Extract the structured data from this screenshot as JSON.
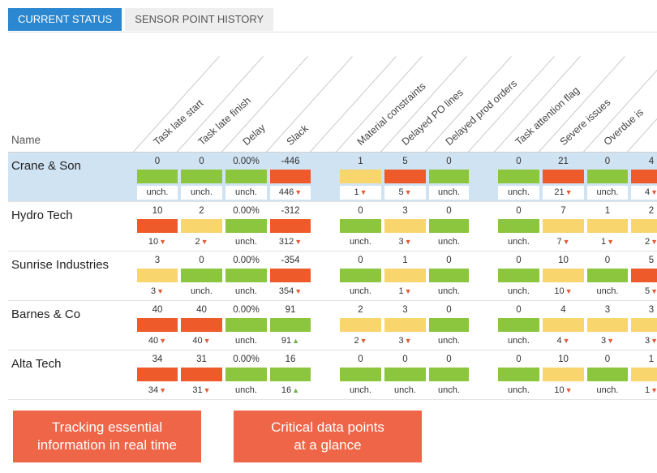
{
  "tabs": [
    {
      "label": "CURRENT STATUS",
      "active": true
    },
    {
      "label": "SENSOR POINT HISTORY",
      "active": false
    }
  ],
  "columns": [
    {
      "label": "Task late start"
    },
    {
      "label": "Task late finish"
    },
    {
      "label": "Delay"
    },
    {
      "label": "Slack"
    },
    {
      "label": ""
    },
    {
      "label": "Material constraints"
    },
    {
      "label": "Delayed PO lines"
    },
    {
      "label": "Delayed prod orders"
    },
    {
      "label": ""
    },
    {
      "label": "Task attention flag"
    },
    {
      "label": "Severe issues"
    },
    {
      "label": "Overdue is"
    },
    {
      "label": ""
    }
  ],
  "name_header": "Name",
  "colors": {
    "green": "#8cc63f",
    "yellow": "#f9d56e",
    "red": "#ef5a2a",
    "up": "#6cb444",
    "down": "#e55a35"
  },
  "rows": [
    {
      "name": "Crane & Son",
      "selected": true,
      "cells": [
        {
          "value": "0",
          "color": "green",
          "change": "unch.",
          "dir": ""
        },
        {
          "value": "0",
          "color": "green",
          "change": "unch.",
          "dir": ""
        },
        {
          "value": "0.00%",
          "color": "green",
          "change": "unch.",
          "dir": ""
        },
        {
          "value": "-446",
          "color": "red",
          "change": "446",
          "dir": "down"
        },
        null,
        {
          "value": "1",
          "color": "yellow",
          "change": "1",
          "dir": "down"
        },
        {
          "value": "5",
          "color": "red",
          "change": "5",
          "dir": "down"
        },
        {
          "value": "0",
          "color": "green",
          "change": "unch.",
          "dir": ""
        },
        null,
        {
          "value": "0",
          "color": "green",
          "change": "unch.",
          "dir": ""
        },
        {
          "value": "21",
          "color": "red",
          "change": "21",
          "dir": "down"
        },
        {
          "value": "0",
          "color": "green",
          "change": "unch.",
          "dir": ""
        },
        {
          "value": "4",
          "color": "red",
          "change": "4",
          "dir": "down"
        }
      ]
    },
    {
      "name": "Hydro Tech",
      "selected": false,
      "cells": [
        {
          "value": "10",
          "color": "red",
          "change": "10",
          "dir": "down"
        },
        {
          "value": "2",
          "color": "yellow",
          "change": "2",
          "dir": "down"
        },
        {
          "value": "0.00%",
          "color": "green",
          "change": "unch.",
          "dir": ""
        },
        {
          "value": "-312",
          "color": "red",
          "change": "312",
          "dir": "down"
        },
        null,
        {
          "value": "0",
          "color": "green",
          "change": "unch.",
          "dir": ""
        },
        {
          "value": "3",
          "color": "yellow",
          "change": "3",
          "dir": "down"
        },
        {
          "value": "0",
          "color": "green",
          "change": "unch.",
          "dir": ""
        },
        null,
        {
          "value": "0",
          "color": "green",
          "change": "unch.",
          "dir": ""
        },
        {
          "value": "7",
          "color": "yellow",
          "change": "7",
          "dir": "down"
        },
        {
          "value": "1",
          "color": "yellow",
          "change": "1",
          "dir": "down"
        },
        {
          "value": "2",
          "color": "yellow",
          "change": "2",
          "dir": "down"
        }
      ]
    },
    {
      "name": "Sunrise Industries",
      "selected": false,
      "cells": [
        {
          "value": "3",
          "color": "yellow",
          "change": "3",
          "dir": "down"
        },
        {
          "value": "0",
          "color": "green",
          "change": "unch.",
          "dir": ""
        },
        {
          "value": "0.00%",
          "color": "green",
          "change": "unch.",
          "dir": ""
        },
        {
          "value": "-354",
          "color": "red",
          "change": "354",
          "dir": "down"
        },
        null,
        {
          "value": "0",
          "color": "green",
          "change": "unch.",
          "dir": ""
        },
        {
          "value": "1",
          "color": "yellow",
          "change": "1",
          "dir": "down"
        },
        {
          "value": "0",
          "color": "green",
          "change": "unch.",
          "dir": ""
        },
        null,
        {
          "value": "0",
          "color": "green",
          "change": "unch.",
          "dir": ""
        },
        {
          "value": "10",
          "color": "yellow",
          "change": "10",
          "dir": "down"
        },
        {
          "value": "0",
          "color": "green",
          "change": "unch.",
          "dir": ""
        },
        {
          "value": "5",
          "color": "red",
          "change": "5",
          "dir": "down"
        }
      ]
    },
    {
      "name": "Barnes & Co",
      "selected": false,
      "cells": [
        {
          "value": "40",
          "color": "red",
          "change": "40",
          "dir": "down"
        },
        {
          "value": "40",
          "color": "red",
          "change": "40",
          "dir": "down"
        },
        {
          "value": "0.00%",
          "color": "green",
          "change": "unch.",
          "dir": ""
        },
        {
          "value": "91",
          "color": "green",
          "change": "91",
          "dir": "up"
        },
        null,
        {
          "value": "2",
          "color": "yellow",
          "change": "2",
          "dir": "down"
        },
        {
          "value": "3",
          "color": "yellow",
          "change": "3",
          "dir": "down"
        },
        {
          "value": "0",
          "color": "green",
          "change": "unch.",
          "dir": ""
        },
        null,
        {
          "value": "0",
          "color": "green",
          "change": "unch.",
          "dir": ""
        },
        {
          "value": "4",
          "color": "yellow",
          "change": "4",
          "dir": "down"
        },
        {
          "value": "3",
          "color": "yellow",
          "change": "3",
          "dir": "down"
        },
        {
          "value": "3",
          "color": "yellow",
          "change": "3",
          "dir": "down"
        }
      ]
    },
    {
      "name": "Alta Tech",
      "selected": false,
      "cells": [
        {
          "value": "34",
          "color": "red",
          "change": "34",
          "dir": "down"
        },
        {
          "value": "31",
          "color": "red",
          "change": "31",
          "dir": "down"
        },
        {
          "value": "0.00%",
          "color": "green",
          "change": "unch.",
          "dir": ""
        },
        {
          "value": "16",
          "color": "green",
          "change": "16",
          "dir": "up"
        },
        null,
        {
          "value": "0",
          "color": "green",
          "change": "unch.",
          "dir": ""
        },
        {
          "value": "0",
          "color": "green",
          "change": "unch.",
          "dir": ""
        },
        {
          "value": "0",
          "color": "green",
          "change": "unch.",
          "dir": ""
        },
        null,
        {
          "value": "0",
          "color": "green",
          "change": "unch.",
          "dir": ""
        },
        {
          "value": "10",
          "color": "yellow",
          "change": "10",
          "dir": "down"
        },
        {
          "value": "0",
          "color": "green",
          "change": "unch.",
          "dir": ""
        },
        {
          "value": "1",
          "color": "yellow",
          "change": "1",
          "dir": "down"
        }
      ]
    }
  ],
  "callouts": [
    {
      "text": "Tracking essential\ninformation in real time"
    },
    {
      "text": "Critical data points\nat a glance"
    }
  ]
}
